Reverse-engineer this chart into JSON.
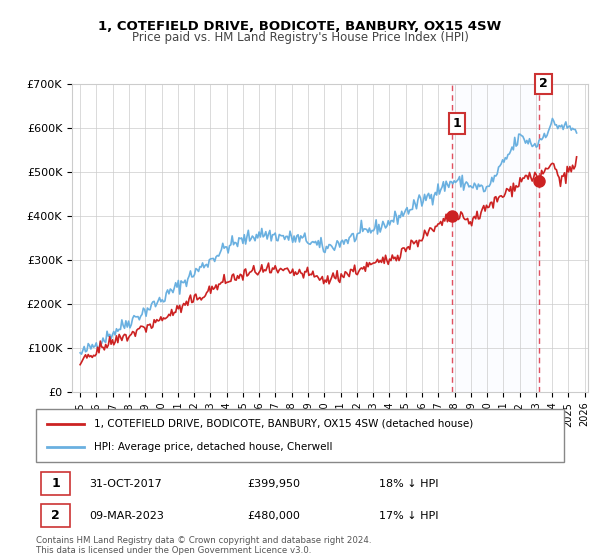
{
  "title": "1, COTEFIELD DRIVE, BODICOTE, BANBURY, OX15 4SW",
  "subtitle": "Price paid vs. HM Land Registry's House Price Index (HPI)",
  "hpi_label": "HPI: Average price, detached house, Cherwell",
  "property_label": "1, COTEFIELD DRIVE, BODICOTE, BANBURY, OX15 4SW (detached house)",
  "hpi_color": "#6ab0e0",
  "property_color": "#cc2222",
  "annotation1_date": "31-OCT-2017",
  "annotation1_price": "£399,950",
  "annotation1_hpi": "18% ↓ HPI",
  "annotation2_date": "09-MAR-2023",
  "annotation2_price": "£480,000",
  "annotation2_hpi": "17% ↓ HPI",
  "footnote1": "Contains HM Land Registry data © Crown copyright and database right 2024.",
  "footnote2": "This data is licensed under the Open Government Licence v3.0.",
  "ylim": [
    0,
    700000
  ],
  "xlabel_start": 1995,
  "xlabel_end": 2026,
  "marker1_year": 2017.83,
  "marker1_price": 399950,
  "marker1_hpi": 490000,
  "marker2_year": 2023.17,
  "marker2_price": 480000,
  "marker2_hpi": 580000,
  "vline1_year": 2017.83,
  "vline2_year": 2023.17
}
